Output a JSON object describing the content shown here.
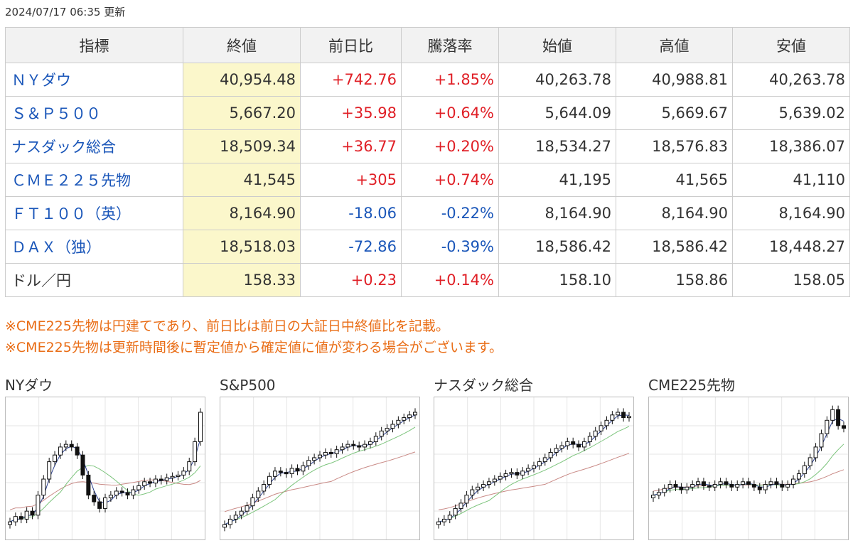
{
  "header": {
    "updated": "2024/07/17 06:35 更新"
  },
  "table": {
    "columns": [
      "指標",
      "終値",
      "前日比",
      "騰落率",
      "始値",
      "高値",
      "安値"
    ],
    "rows": [
      {
        "name": "ＮＹダウ",
        "close": "40,954.48",
        "change": "+742.76",
        "pct": "+1.85%",
        "open": "40,263.78",
        "high": "40,988.81",
        "low": "40,263.78",
        "dir": "up",
        "link": true
      },
      {
        "name": "Ｓ＆Ｐ５００",
        "close": "5,667.20",
        "change": "+35.98",
        "pct": "+0.64%",
        "open": "5,644.09",
        "high": "5,669.67",
        "low": "5,639.02",
        "dir": "up",
        "link": true
      },
      {
        "name": "ナスダック総合",
        "close": "18,509.34",
        "change": "+36.77",
        "pct": "+0.20%",
        "open": "18,534.27",
        "high": "18,576.83",
        "low": "18,386.07",
        "dir": "up",
        "link": true
      },
      {
        "name": "ＣＭＥ２２５先物",
        "close": "41,545",
        "change": "+305",
        "pct": "+0.74%",
        "open": "41,195",
        "high": "41,565",
        "low": "41,110",
        "dir": "up",
        "link": true
      },
      {
        "name": "ＦＴ１００（英）",
        "close": "8,164.90",
        "change": "-18.06",
        "pct": "-0.22%",
        "open": "8,164.90",
        "high": "8,164.90",
        "low": "8,164.90",
        "dir": "down",
        "link": true
      },
      {
        "name": "ＤＡＸ（独）",
        "close": "18,518.03",
        "change": "-72.86",
        "pct": "-0.39%",
        "open": "18,586.42",
        "high": "18,586.42",
        "low": "18,448.27",
        "dir": "down",
        "link": true
      },
      {
        "name": "ドル／円",
        "close": "158.33",
        "change": "+0.23",
        "pct": "+0.14%",
        "open": "158.10",
        "high": "158.86",
        "low": "158.05",
        "dir": "up",
        "link": false
      }
    ]
  },
  "notes": [
    "※CME225先物は円建てであり、前日比は前日の大証日中終値比を記載。",
    "※CME225先物は更新時間後に暫定値から確定値に値が変わる場合がございます。"
  ],
  "charts": [
    {
      "title": "NYダウ",
      "close": [
        0.1,
        0.14,
        0.12,
        0.18,
        0.15,
        0.3,
        0.42,
        0.55,
        0.6,
        0.66,
        0.68,
        0.66,
        0.6,
        0.45,
        0.3,
        0.25,
        0.2,
        0.28,
        0.3,
        0.33,
        0.32,
        0.3,
        0.34,
        0.37,
        0.4,
        0.39,
        0.42,
        0.41,
        0.43,
        0.44,
        0.45,
        0.48,
        0.55,
        0.7,
        0.92
      ]
    },
    {
      "title": "S&P500",
      "close": [
        0.08,
        0.12,
        0.15,
        0.18,
        0.22,
        0.28,
        0.33,
        0.38,
        0.44,
        0.48,
        0.47,
        0.46,
        0.5,
        0.48,
        0.52,
        0.56,
        0.58,
        0.6,
        0.62,
        0.61,
        0.64,
        0.66,
        0.68,
        0.67,
        0.66,
        0.68,
        0.7,
        0.74,
        0.78,
        0.8,
        0.83,
        0.86,
        0.88,
        0.9,
        0.92
      ]
    },
    {
      "title": "ナスダック総合",
      "close": [
        0.1,
        0.12,
        0.15,
        0.2,
        0.24,
        0.3,
        0.34,
        0.36,
        0.38,
        0.4,
        0.42,
        0.44,
        0.46,
        0.47,
        0.45,
        0.48,
        0.5,
        0.52,
        0.55,
        0.58,
        0.62,
        0.65,
        0.67,
        0.7,
        0.68,
        0.66,
        0.7,
        0.74,
        0.78,
        0.82,
        0.86,
        0.9,
        0.92,
        0.88,
        0.89
      ]
    },
    {
      "title": "CME225先物",
      "close": [
        0.3,
        0.32,
        0.35,
        0.38,
        0.36,
        0.34,
        0.36,
        0.38,
        0.4,
        0.37,
        0.36,
        0.38,
        0.4,
        0.38,
        0.36,
        0.38,
        0.4,
        0.38,
        0.36,
        0.34,
        0.38,
        0.4,
        0.38,
        0.36,
        0.38,
        0.42,
        0.46,
        0.52,
        0.58,
        0.66,
        0.76,
        0.86,
        0.94,
        0.82,
        0.8
      ]
    }
  ],
  "colors": {
    "up": "#e01f26",
    "down": "#1a56b9",
    "close_bg": "#fbf7cb",
    "note": "#e96d16"
  }
}
